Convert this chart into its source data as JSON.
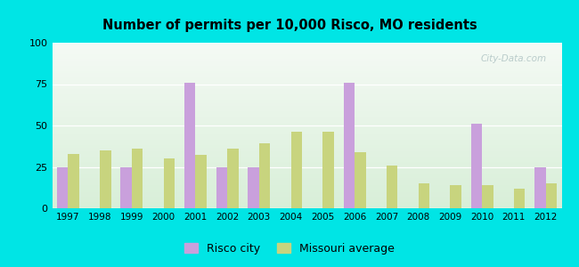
{
  "title": "Number of permits per 10,000 Risco, MO residents",
  "years": [
    1997,
    1998,
    1999,
    2000,
    2001,
    2002,
    2003,
    2004,
    2005,
    2006,
    2007,
    2008,
    2009,
    2010,
    2011,
    2012
  ],
  "risco_city": [
    25,
    0,
    25,
    0,
    76,
    25,
    25,
    0,
    0,
    76,
    0,
    0,
    0,
    51,
    0,
    25
  ],
  "missouri_avg": [
    33,
    35,
    36,
    30,
    32,
    36,
    39,
    46,
    46,
    34,
    26,
    15,
    14,
    14,
    12,
    15
  ],
  "risco_color": "#c9a0dc",
  "missouri_color": "#c8d47e",
  "background_outer": "#00e5e5",
  "ylim": [
    0,
    100
  ],
  "yticks": [
    0,
    25,
    50,
    75,
    100
  ],
  "bar_width": 0.35,
  "legend_risco": "Risco city",
  "legend_missouri": "Missouri average",
  "watermark": "City-Data.com",
  "grad_top": "#f5faf5",
  "grad_bottom": "#d8efd8"
}
